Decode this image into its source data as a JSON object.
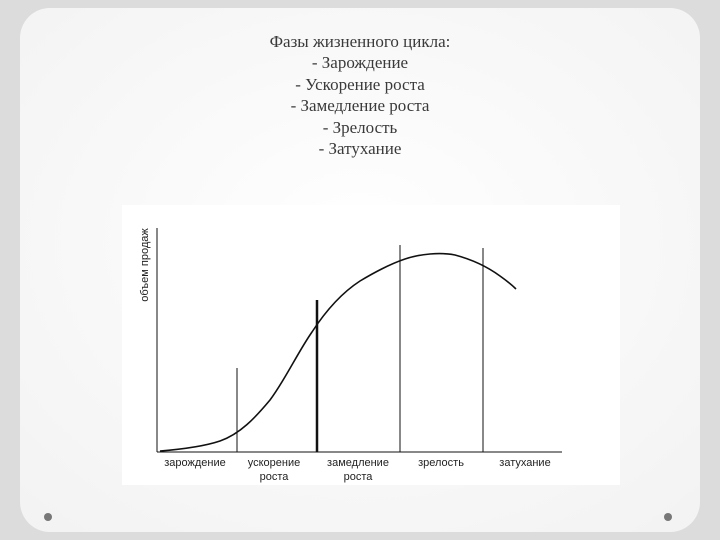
{
  "title": {
    "heading": "Фазы жизненного цикла:",
    "items": [
      "- Зарождение",
      "- Ускорение роста",
      "- Замедление роста",
      "- Зрелость",
      "- Затухание"
    ]
  },
  "diagram": {
    "y_axis_label": "объем продаж",
    "stages": [
      [
        "зарождение"
      ],
      [
        "ускорение",
        "роста"
      ],
      [
        "замедление",
        "роста"
      ],
      [
        "зрелость"
      ],
      [
        "затухание"
      ]
    ]
  }
}
